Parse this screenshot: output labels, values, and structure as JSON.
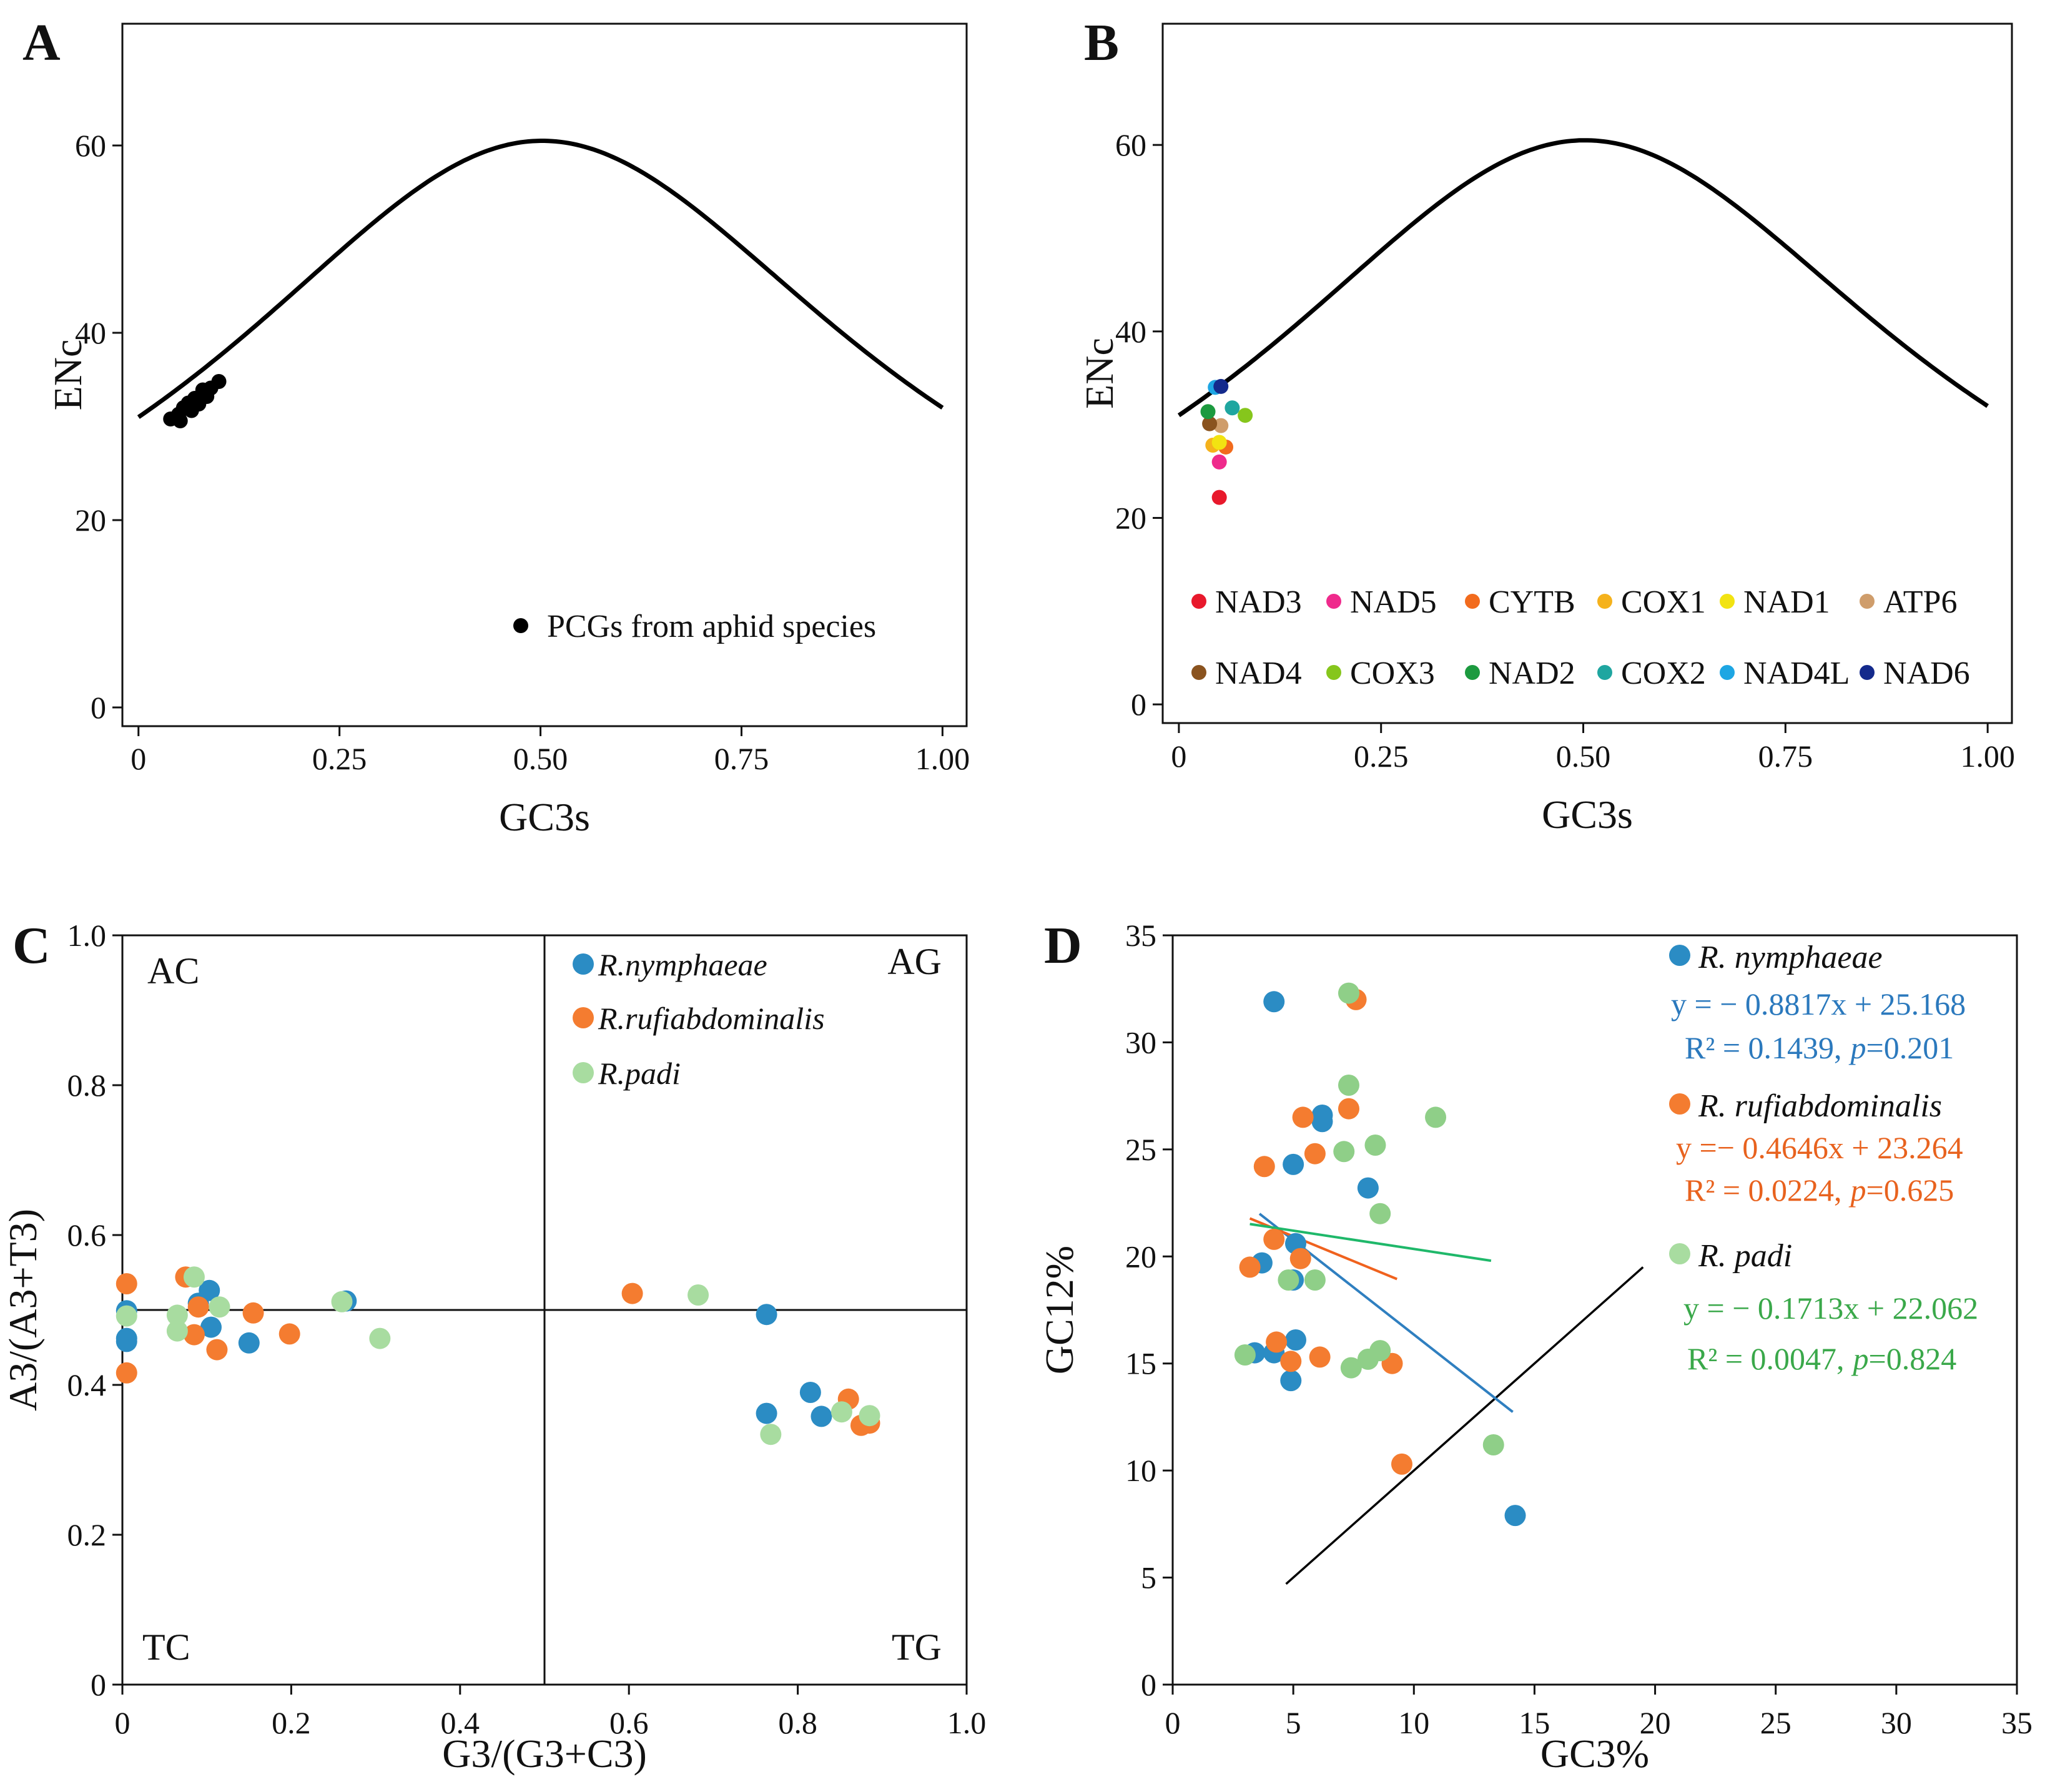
{
  "colors": {
    "axis": "#111111",
    "curve": "#000000",
    "nymphaeae": "#2b8cc4",
    "rufiabdominalis": "#f47c30",
    "padi": "#a8dca0",
    "padi_scatter": "#8fcf88"
  },
  "chart_data": [
    {
      "panel": "A",
      "type": "scatter",
      "xlabel": "GC3s",
      "ylabel": "ENc",
      "xlim": [
        -0.02,
        1.03
      ],
      "ylim": [
        -2,
        73
      ],
      "xticks": [
        0,
        0.25,
        0.5,
        0.75,
        1.0
      ],
      "xtick_labels": [
        "0",
        "0.25",
        "0.50",
        "0.75",
        "1.00"
      ],
      "yticks": [
        0,
        20,
        40,
        60
      ],
      "ytick_labels": [
        "0",
        "20",
        "40",
        "60"
      ],
      "curve": "ENc = 2 + s + 29/(s^2 + (1-s)^2)",
      "legend": [
        {
          "label": "PCGs from aphid species",
          "color": "#000000"
        }
      ],
      "legend_position": "bottom-right",
      "series": [
        {
          "name": "PCGs from aphid species",
          "color": "#000000",
          "points": [
            [
              0.04,
              30.8
            ],
            [
              0.05,
              31.3
            ],
            [
              0.052,
              30.6
            ],
            [
              0.056,
              32.0
            ],
            [
              0.062,
              32.5
            ],
            [
              0.066,
              31.7
            ],
            [
              0.07,
              33.0
            ],
            [
              0.075,
              32.4
            ],
            [
              0.08,
              33.9
            ],
            [
              0.085,
              33.2
            ],
            [
              0.09,
              34.1
            ],
            [
              0.1,
              34.8
            ]
          ]
        }
      ]
    },
    {
      "panel": "B",
      "type": "scatter",
      "xlabel": "GC3s",
      "ylabel": "ENc",
      "xlim": [
        -0.02,
        1.03
      ],
      "ylim": [
        -2,
        73
      ],
      "xticks": [
        0,
        0.25,
        0.5,
        0.75,
        1.0
      ],
      "xtick_labels": [
        "0",
        "0.25",
        "0.50",
        "0.75",
        "1.00"
      ],
      "yticks": [
        0,
        20,
        40,
        60
      ],
      "ytick_labels": [
        "0",
        "20",
        "40",
        "60"
      ],
      "curve": "ENc = 2 + s + 29/(s^2 + (1-s)^2)",
      "legend_position": "bottom",
      "series": [
        {
          "name": "NAD3",
          "color": "#e8192c",
          "points": [
            [
              0.05,
              22.2
            ]
          ]
        },
        {
          "name": "NAD5",
          "color": "#ef2a8c",
          "points": [
            [
              0.05,
              26.0
            ]
          ]
        },
        {
          "name": "CYTB",
          "color": "#f26b1d",
          "points": [
            [
              0.058,
              27.6
            ]
          ]
        },
        {
          "name": "COX1",
          "color": "#f5b21c",
          "points": [
            [
              0.042,
              27.8
            ]
          ]
        },
        {
          "name": "NAD1",
          "color": "#f2e312",
          "points": [
            [
              0.05,
              28.1
            ]
          ]
        },
        {
          "name": "ATP6",
          "color": "#cf9d6b",
          "points": [
            [
              0.052,
              29.9
            ]
          ]
        },
        {
          "name": "NAD4",
          "color": "#8a531f",
          "points": [
            [
              0.038,
              30.1
            ]
          ]
        },
        {
          "name": "COX3",
          "color": "#86c61c",
          "points": [
            [
              0.082,
              31.0
            ]
          ]
        },
        {
          "name": "NAD2",
          "color": "#1c9a3f",
          "points": [
            [
              0.036,
              31.4
            ]
          ]
        },
        {
          "name": "COX2",
          "color": "#1fa6a0",
          "points": [
            [
              0.066,
              31.8
            ]
          ]
        },
        {
          "name": "NAD4L",
          "color": "#1ea6e3",
          "points": [
            [
              0.045,
              34.0
            ]
          ]
        },
        {
          "name": "NAD6",
          "color": "#142a8c",
          "points": [
            [
              0.052,
              34.1
            ]
          ]
        }
      ]
    },
    {
      "panel": "C",
      "type": "scatter",
      "xlabel": "G3/(G3+C3)",
      "ylabel": "A3/(A3+T3)",
      "xlim": [
        0,
        1.0
      ],
      "ylim": [
        0,
        1.0
      ],
      "xticks": [
        0,
        0.2,
        0.4,
        0.6,
        0.8,
        1.0
      ],
      "xtick_labels": [
        "0",
        "0.2",
        "0.4",
        "0.6",
        "0.8",
        "1.0"
      ],
      "yticks": [
        0,
        0.2,
        0.4,
        0.6,
        0.8,
        1.0
      ],
      "ytick_labels": [
        "0",
        "0.2",
        "0.4",
        "0.6",
        "0.8",
        "1.0"
      ],
      "reference_lines": {
        "x": 0.5,
        "y": 0.5
      },
      "quadrants": {
        "top_left": "AC",
        "top_right": "AG",
        "bottom_left": "TC",
        "bottom_right": "TG"
      },
      "legend": [
        {
          "label": "R.nymphaeae",
          "color": "#2b8cc4"
        },
        {
          "label": "R.rufiabdominalis",
          "color": "#f47c30"
        },
        {
          "label": "R.padi",
          "color": "#a8dca0"
        }
      ],
      "legend_position": "top-right",
      "series": [
        {
          "name": "R.nymphaeae",
          "color": "#2b8cc4",
          "points": [
            [
              0.005,
              0.499
            ],
            [
              0.005,
              0.462
            ],
            [
              0.005,
              0.458
            ],
            [
              0.09,
              0.509
            ],
            [
              0.103,
              0.526
            ],
            [
              0.105,
              0.477
            ],
            [
              0.15,
              0.456
            ],
            [
              0.265,
              0.512
            ],
            [
              0.763,
              0.494
            ],
            [
              0.763,
              0.362
            ],
            [
              0.815,
              0.39
            ],
            [
              0.828,
              0.358
            ]
          ]
        },
        {
          "name": "R.rufiabdominalis",
          "color": "#f47c30",
          "points": [
            [
              0.005,
              0.535
            ],
            [
              0.005,
              0.416
            ],
            [
              0.075,
              0.544
            ],
            [
              0.085,
              0.467
            ],
            [
              0.09,
              0.504
            ],
            [
              0.112,
              0.447
            ],
            [
              0.155,
              0.496
            ],
            [
              0.198,
              0.468
            ],
            [
              0.604,
              0.522
            ],
            [
              0.86,
              0.381
            ],
            [
              0.875,
              0.346
            ],
            [
              0.885,
              0.349
            ]
          ]
        },
        {
          "name": "R.padi",
          "color": "#a8dca0",
          "points": [
            [
              0.005,
              0.492
            ],
            [
              0.065,
              0.472
            ],
            [
              0.065,
              0.493
            ],
            [
              0.085,
              0.544
            ],
            [
              0.115,
              0.504
            ],
            [
              0.26,
              0.511
            ],
            [
              0.305,
              0.462
            ],
            [
              0.682,
              0.52
            ],
            [
              0.768,
              0.334
            ],
            [
              0.852,
              0.364
            ],
            [
              0.885,
              0.359
            ]
          ]
        }
      ]
    },
    {
      "panel": "D",
      "type": "scatter",
      "xlabel": "GC3%",
      "ylabel": "GC12%",
      "xlim": [
        0,
        35
      ],
      "ylim": [
        0,
        35
      ],
      "xticks": [
        0,
        5,
        10,
        15,
        20,
        25,
        30,
        35
      ],
      "xtick_labels": [
        "0",
        "5",
        "10",
        "15",
        "20",
        "25",
        "30",
        "35"
      ],
      "yticks": [
        0,
        5,
        10,
        15,
        20,
        25,
        30,
        35
      ],
      "ytick_labels": [
        "0",
        "5",
        "10",
        "15",
        "20",
        "25",
        "30",
        "35"
      ],
      "legend_position": "top-right",
      "series": [
        {
          "name": "R. nymphaeae",
          "color": "#2b8cc4",
          "equation": "y = − 0.8817x + 25.168",
          "r2_text": "R² = 0.1439,",
          "p_text": "=0.201",
          "fit": {
            "slope": -0.8817,
            "intercept": 25.168,
            "x_range": [
              3.6,
              14.1
            ]
          },
          "points": [
            [
              4.2,
              31.9
            ],
            [
              6.2,
              26.6
            ],
            [
              6.2,
              26.3
            ],
            [
              5.0,
              24.3
            ],
            [
              8.1,
              23.2
            ],
            [
              5.1,
              20.6
            ],
            [
              3.7,
              19.7
            ],
            [
              5.0,
              18.9
            ],
            [
              3.4,
              15.5
            ],
            [
              4.2,
              15.5
            ],
            [
              5.1,
              16.1
            ],
            [
              4.9,
              14.2
            ],
            [
              14.2,
              7.9
            ]
          ]
        },
        {
          "name": "R. rufiabdominalis",
          "color": "#f47c30",
          "equation": "y =− 0.4646x + 23.264",
          "r2_text": "R² = 0.0224,",
          "p_text": "=0.625",
          "fit": {
            "slope": -0.4646,
            "intercept": 23.264,
            "x_range": [
              3.2,
              9.3
            ]
          },
          "points": [
            [
              7.6,
              32.0
            ],
            [
              7.3,
              26.9
            ],
            [
              5.4,
              26.5
            ],
            [
              5.9,
              24.8
            ],
            [
              3.8,
              24.2
            ],
            [
              4.2,
              20.8
            ],
            [
              5.3,
              19.9
            ],
            [
              3.2,
              19.5
            ],
            [
              4.3,
              16.0
            ],
            [
              4.9,
              15.1
            ],
            [
              6.1,
              15.3
            ],
            [
              9.1,
              15.0
            ],
            [
              9.5,
              10.3
            ]
          ]
        },
        {
          "name": "R. padi",
          "color": "#a8dca0",
          "equation": "y = − 0.1713x + 22.062",
          "r2_text": "R² = 0.0047,",
          "p_text": "=0.824",
          "fit": {
            "slope": -0.1713,
            "intercept": 22.062,
            "x_range": [
              3.2,
              13.2
            ]
          },
          "points": [
            [
              7.3,
              32.3
            ],
            [
              7.3,
              28.0
            ],
            [
              10.9,
              26.5
            ],
            [
              8.4,
              25.2
            ],
            [
              7.1,
              24.9
            ],
            [
              8.6,
              22.0
            ],
            [
              4.8,
              18.9
            ],
            [
              5.9,
              18.9
            ],
            [
              3.0,
              15.4
            ],
            [
              8.6,
              15.6
            ],
            [
              8.1,
              15.2
            ],
            [
              7.4,
              14.8
            ],
            [
              13.3,
              11.2
            ]
          ]
        }
      ],
      "reference_line": {
        "points": [
          [
            4.7,
            4.7
          ],
          [
            19.5,
            19.5
          ]
        ],
        "color": "#000000"
      }
    }
  ]
}
